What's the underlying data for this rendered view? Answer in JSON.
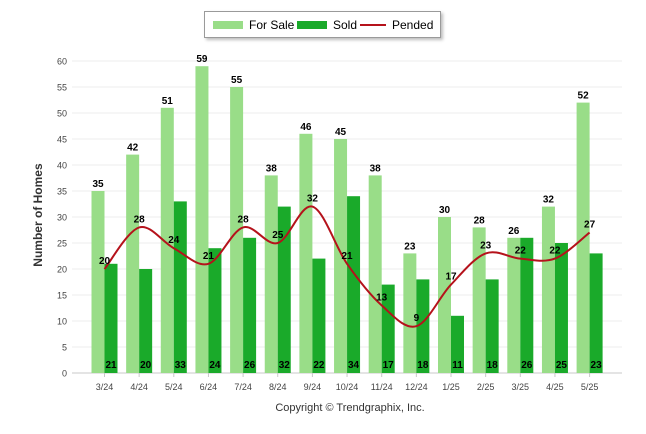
{
  "chart_data": {
    "type": "bar",
    "categories": [
      "3/24",
      "4/24",
      "5/24",
      "6/24",
      "7/24",
      "8/24",
      "9/24",
      "10/24",
      "11/24",
      "12/24",
      "1/25",
      "2/25",
      "3/25",
      "4/25",
      "5/25"
    ],
    "series": [
      {
        "name": "For Sale",
        "type": "bar",
        "color": "#99dd88",
        "values": [
          35,
          42,
          51,
          59,
          55,
          38,
          46,
          45,
          38,
          23,
          30,
          28,
          26,
          32,
          52
        ]
      },
      {
        "name": "Sold",
        "type": "bar",
        "color": "#1aaa2a",
        "values": [
          21,
          20,
          33,
          24,
          26,
          32,
          22,
          34,
          17,
          18,
          11,
          18,
          26,
          25,
          23
        ]
      },
      {
        "name": "Pended",
        "type": "line",
        "color": "#b5121b",
        "values": [
          20,
          28,
          24,
          21,
          28,
          25,
          32,
          21,
          13,
          9,
          17,
          23,
          22,
          22,
          27
        ]
      }
    ],
    "xlabel": "",
    "ylabel": "Number of Homes",
    "ylim": [
      0,
      60
    ],
    "yticks": [
      0,
      5,
      10,
      15,
      20,
      25,
      30,
      35,
      40,
      45,
      50,
      55,
      60
    ],
    "legend_position": "top-center",
    "grid": true
  },
  "footer": "Copyright © Trendgraphix, Inc."
}
